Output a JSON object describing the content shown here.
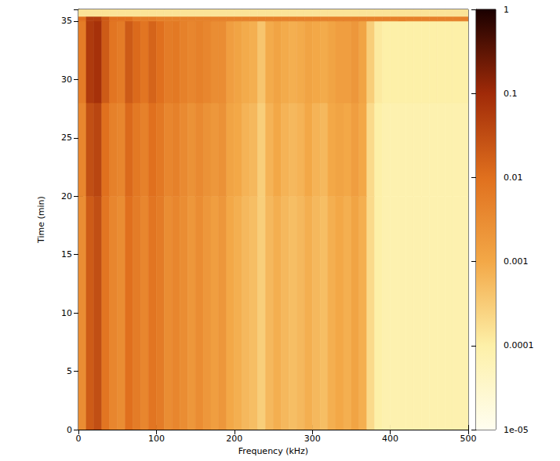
{
  "chart_data": {
    "type": "heatmap",
    "xlabel": "Frequency (kHz)",
    "ylabel": "Time (min)",
    "xlim": [
      0,
      500
    ],
    "xticks": [
      0,
      100,
      200,
      300,
      400,
      500
    ],
    "ylim": [
      0,
      36
    ],
    "yticks": [
      0,
      5,
      10,
      15,
      20,
      25,
      30,
      35
    ],
    "x_edges": [
      0,
      10,
      20,
      30,
      40,
      50,
      60,
      70,
      80,
      90,
      100,
      110,
      120,
      130,
      140,
      150,
      160,
      170,
      180,
      190,
      200,
      210,
      220,
      230,
      240,
      250,
      260,
      270,
      280,
      290,
      300,
      310,
      320,
      330,
      340,
      350,
      360,
      370,
      380,
      390,
      400,
      410,
      420,
      430,
      440,
      450,
      460,
      470,
      480,
      490,
      500
    ],
    "y_edges": [
      0,
      20,
      28,
      35,
      35.4,
      36
    ],
    "cells": [
      [
        0.003,
        0.02,
        0.03,
        0.008,
        0.004,
        0.003,
        0.01,
        0.006,
        0.004,
        0.008,
        0.006,
        0.003,
        0.004,
        0.003,
        0.002,
        0.003,
        0.002,
        0.0015,
        0.002,
        0.001,
        0.0008,
        0.0006,
        0.0005,
        0.0003,
        0.0006,
        0.0008,
        0.0006,
        0.0005,
        0.0006,
        0.0008,
        0.0006,
        0.0005,
        0.0008,
        0.001,
        0.0008,
        0.0012,
        0.0008,
        0.0002,
        0.0001,
        8e-05,
        8e-05,
        8e-05,
        8e-05,
        8e-05,
        8e-05,
        8e-05,
        8e-05,
        8e-05,
        8e-05,
        8e-05
      ],
      [
        0.004,
        0.03,
        0.04,
        0.01,
        0.005,
        0.004,
        0.012,
        0.007,
        0.005,
        0.01,
        0.007,
        0.004,
        0.005,
        0.0035,
        0.0025,
        0.0035,
        0.0025,
        0.002,
        0.0025,
        0.0012,
        0.001,
        0.0007,
        0.0006,
        0.0003,
        0.0007,
        0.001,
        0.0007,
        0.0006,
        0.0007,
        0.001,
        0.0007,
        0.0006,
        0.001,
        0.0012,
        0.001,
        0.0015,
        0.001,
        0.0002,
        0.0001,
        8e-05,
        8e-05,
        8e-05,
        8e-05,
        8e-05,
        8e-05,
        8e-05,
        8e-05,
        8e-05,
        8e-05,
        8e-05
      ],
      [
        0.006,
        0.06,
        0.08,
        0.02,
        0.008,
        0.006,
        0.02,
        0.012,
        0.008,
        0.015,
        0.01,
        0.006,
        0.007,
        0.005,
        0.004,
        0.005,
        0.004,
        0.003,
        0.003,
        0.0015,
        0.0012,
        0.0009,
        0.0008,
        0.0004,
        0.0009,
        0.0012,
        0.0009,
        0.0008,
        0.0009,
        0.0012,
        0.001,
        0.0009,
        0.0012,
        0.0015,
        0.0015,
        0.002,
        0.0012,
        0.0003,
        0.00012,
        0.0001,
        0.0001,
        0.0001,
        0.0001,
        0.0001,
        0.0001,
        0.0001,
        0.0001,
        0.0001,
        0.0001,
        0.0001
      ],
      [
        0.01,
        0.05,
        0.05,
        0.02,
        0.01,
        0.01,
        0.01,
        0.006,
        0.006,
        0.006,
        0.005,
        0.005,
        0.005,
        0.005,
        0.005,
        0.005,
        0.005,
        0.005,
        0.005,
        0.005,
        0.005,
        0.005,
        0.005,
        0.005,
        0.005,
        0.005,
        0.005,
        0.005,
        0.005,
        0.005,
        0.005,
        0.005,
        0.005,
        0.005,
        0.005,
        0.005,
        0.005,
        0.005,
        0.005,
        0.005,
        0.005,
        0.005,
        0.005,
        0.005,
        0.005,
        0.005,
        0.005,
        0.005,
        0.005,
        0.005
      ],
      [
        0.00015,
        0.00015,
        0.00015,
        0.00015,
        0.00015,
        0.00015,
        0.00015,
        0.00015,
        0.00015,
        0.00015,
        0.00015,
        0.00015,
        0.00015,
        0.00015,
        0.00015,
        0.00015,
        0.00015,
        0.00015,
        0.00015,
        0.00015,
        0.00015,
        0.00015,
        0.00015,
        0.00015,
        0.00015,
        0.00015,
        0.00015,
        0.00015,
        0.00015,
        0.00015,
        0.00015,
        0.00015,
        0.00015,
        0.00015,
        0.00015,
        0.00015,
        0.00015,
        0.00015,
        0.00015,
        0.00015,
        0.00015,
        0.00015,
        0.00015,
        0.00015,
        0.00015,
        0.00015,
        0.00015,
        0.00015,
        0.00015,
        0.00015
      ]
    ],
    "colorbar": {
      "range": [
        1e-05,
        1
      ],
      "ticks": [
        {
          "value": 1e-05,
          "label": "1e-05"
        },
        0.0001,
        0.001,
        0.01,
        0.1,
        1
      ],
      "log": true
    }
  }
}
